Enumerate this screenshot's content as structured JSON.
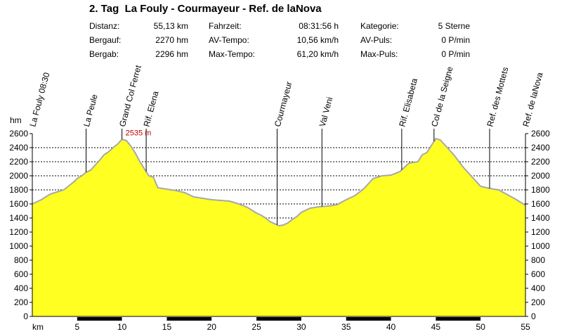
{
  "title": "2. Tag  La Fouly - Courmayeur - Ref. de laNova",
  "stats": [
    {
      "label": "Distanz:",
      "value": "55,13 km"
    },
    {
      "label": "Bergauf:",
      "value": "2270 hm"
    },
    {
      "label": "Bergab:",
      "value": "2296 hm"
    },
    {
      "label": "Fahrzeit:",
      "value": "08:31:56 h"
    },
    {
      "label": "AV-Tempo:",
      "value": "10,56 km/h"
    },
    {
      "label": "Max-Tempo:",
      "value": "61,20 km/h"
    },
    {
      "label": "Kategorie:",
      "value": "5 Sterne"
    },
    {
      "label": "AV-Puls:",
      "value": "0 P/min"
    },
    {
      "label": "Max-Puls:",
      "value": "0 P/min"
    }
  ],
  "chart_data": {
    "type": "area",
    "xlabel": "km",
    "ylabel": "hm",
    "xlim": [
      0,
      55
    ],
    "ylim": [
      0,
      2600
    ],
    "x_ticks": [
      5,
      10,
      15,
      20,
      25,
      30,
      35,
      40,
      45,
      50,
      55
    ],
    "y_ticks": [
      0,
      200,
      400,
      600,
      800,
      1000,
      1200,
      1400,
      1600,
      1800,
      2000,
      2200,
      2400,
      2600
    ],
    "grid": true,
    "fill_color": "#ffff22",
    "line_color": "#a8a8a8",
    "max_label": "2535 m",
    "max_point": {
      "x": 10.0,
      "y": 2535
    },
    "profile": {
      "x": [
        0,
        0.5,
        1,
        1.5,
        2,
        2.5,
        3,
        3.5,
        4,
        4.5,
        5,
        5.5,
        6,
        6.5,
        7,
        7.5,
        8,
        8.5,
        9,
        9.5,
        10,
        10.5,
        11,
        11.5,
        12,
        12.5,
        13,
        13.5,
        14,
        15,
        16,
        17,
        18,
        19,
        20,
        21,
        22,
        23,
        24,
        25,
        25.5,
        26,
        26.5,
        27,
        27.5,
        28,
        28.5,
        29,
        29.5,
        30,
        31,
        32,
        33,
        34,
        35,
        36,
        37,
        38,
        39,
        40,
        41,
        42,
        43,
        43.5,
        44,
        44.5,
        45,
        45.5,
        46,
        47,
        48,
        49,
        50,
        51,
        52,
        53,
        54,
        55
      ],
      "y": [
        1600,
        1630,
        1660,
        1700,
        1740,
        1760,
        1780,
        1800,
        1850,
        1900,
        1960,
        2000,
        2050,
        2080,
        2150,
        2220,
        2300,
        2340,
        2400,
        2450,
        2520,
        2500,
        2420,
        2320,
        2200,
        2100,
        2000,
        1980,
        1830,
        1810,
        1790,
        1760,
        1700,
        1680,
        1660,
        1650,
        1640,
        1600,
        1550,
        1470,
        1440,
        1400,
        1350,
        1320,
        1290,
        1300,
        1330,
        1380,
        1420,
        1480,
        1540,
        1560,
        1570,
        1590,
        1660,
        1720,
        1820,
        1960,
        2000,
        2010,
        2060,
        2180,
        2200,
        2300,
        2330,
        2430,
        2530,
        2510,
        2440,
        2300,
        2130,
        1990,
        1850,
        1820,
        1800,
        1730,
        1660,
        1580
      ]
    },
    "waypoints": [
      {
        "label": "La Fouly 08:30",
        "x": 0
      },
      {
        "label": "La Peule",
        "x": 6.0
      },
      {
        "label": "Grand Col Ferret",
        "x": 10.0
      },
      {
        "label": "Rif. Elena",
        "x": 12.7
      },
      {
        "label": "Courmayeur",
        "x": 27.3
      },
      {
        "label": "Val Veni",
        "x": 32.3
      },
      {
        "label": "Rif. Elisabeta",
        "x": 41.2
      },
      {
        "label": "Col de la Seigne",
        "x": 44.8
      },
      {
        "label": "Ref. des Mottets",
        "x": 51.0
      },
      {
        "label": "Ref. de laNova",
        "x": 55.0
      }
    ]
  }
}
